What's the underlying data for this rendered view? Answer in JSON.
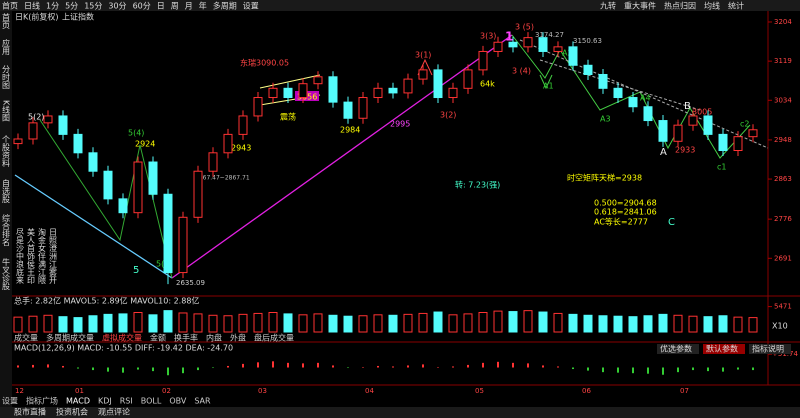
{
  "menu": {
    "left": [
      "首页",
      "日线",
      "1分",
      "5分",
      "15分",
      "30分",
      "60分",
      "日",
      "周",
      "月",
      "年",
      "多周期",
      "设置"
    ],
    "right": [
      "九转",
      "重大事件",
      "热点归因",
      "均线",
      "统计"
    ]
  },
  "sidebar": [
    "首页",
    "应用",
    "分时图",
    "K线图",
    "个股资料",
    "自选股",
    "综合排名",
    "牛叉诊股"
  ],
  "chart": {
    "type": "candlestick",
    "subtitle": "日K(前复权)",
    "name": "上证指数",
    "ylim": [
      2620,
      3230
    ],
    "yticks": [
      3204,
      3119,
      3034,
      2948,
      2863,
      2776,
      2691
    ],
    "dates": [
      "12",
      "01",
      "02",
      "03",
      "04",
      "05",
      "06",
      "07"
    ],
    "up_color": "#ff3232",
    "down_color": "#54fcfc",
    "open": [
      2940,
      2950,
      2985,
      3000,
      2960,
      2920,
      2880,
      2820,
      2790,
      2900,
      2830,
      2660,
      2780,
      2880,
      2920,
      2960,
      3000,
      3040,
      3060,
      3040,
      3070,
      3085,
      3030,
      2995,
      3040,
      3060,
      3050,
      3080,
      3100,
      3040,
      3060,
      3100,
      3140,
      3160,
      3150,
      3170,
      3140,
      3150,
      3110,
      3090,
      3060,
      3040,
      3020,
      2990,
      2945,
      2980,
      3000,
      2960,
      2925,
      2955
    ],
    "high": [
      2962,
      2997,
      3012,
      3012,
      2972,
      2932,
      2892,
      2832,
      2912,
      2912,
      2842,
      2792,
      2892,
      2932,
      2972,
      3012,
      3052,
      3072,
      3072,
      3082,
      3097,
      3097,
      3042,
      3052,
      3072,
      3072,
      3092,
      3112,
      3112,
      3072,
      3112,
      3152,
      3172,
      3172,
      3182,
      3182,
      3162,
      3162,
      3122,
      3102,
      3072,
      3052,
      3032,
      3002,
      2992,
      3012,
      3012,
      2972,
      2967,
      2982
    ],
    "low": [
      2928,
      2938,
      2973,
      2948,
      2908,
      2868,
      2808,
      2778,
      2778,
      2818,
      2635,
      2648,
      2768,
      2868,
      2908,
      2948,
      2988,
      3028,
      3028,
      3028,
      3058,
      3018,
      2983,
      2983,
      3028,
      3038,
      3038,
      3068,
      3028,
      3028,
      3048,
      3088,
      3128,
      3138,
      3138,
      3128,
      3128,
      3098,
      3078,
      3048,
      3028,
      3008,
      2978,
      2933,
      2933,
      2968,
      2948,
      2913,
      2913,
      2943
    ],
    "close": [
      2950,
      2985,
      3000,
      2960,
      2920,
      2880,
      2820,
      2790,
      2900,
      2830,
      2660,
      2780,
      2880,
      2920,
      2960,
      3000,
      3040,
      3060,
      3040,
      3070,
      3085,
      3030,
      2995,
      3040,
      3060,
      3050,
      3080,
      3100,
      3040,
      3060,
      3100,
      3140,
      3160,
      3150,
      3170,
      3140,
      3150,
      3110,
      3090,
      3060,
      3040,
      3020,
      2990,
      2945,
      2980,
      3000,
      2960,
      2925,
      2955,
      2970
    ],
    "annotations": [
      "5(2)",
      "5(4)",
      "2924",
      "5",
      "5(1)",
      "2635.09",
      "2943",
      "2867.47~2867.71",
      "东瑞3090.05",
      "3056",
      "震荡",
      "2984",
      "2995",
      "3(1)",
      "3(2)",
      "3(3)",
      "1",
      "3 (5)",
      "3 (4)",
      "3174.27",
      "3150.63",
      "64k",
      "A1",
      "A2",
      "A3",
      "A4",
      "B",
      "3005",
      "A",
      "2933",
      "c1",
      "c2",
      "C",
      "时空矩阵天梯=2938",
      "转: 7.23(强)",
      "0.500=2904.68",
      "0.618=2841.06",
      "AC等长=2777"
    ]
  },
  "poem": [
    "尽是沙中浪底来",
    "美人首饰侯王印",
    "淘金女伴满江隈",
    "日照澄洲江雾开"
  ],
  "volume": {
    "header": "总手: 2.82亿  MAVOL5: 2.89亿  MAVOL10: 2.88亿",
    "tabs": [
      "成交量",
      "多周期成交量",
      "虚拟成交量",
      "金额",
      "换手率",
      "内盘",
      "外盘",
      "盘后成交量"
    ],
    "ylim": [
      0,
      5600
    ],
    "yticks": [
      5471
    ],
    "unit": "X10",
    "values": [
      3200,
      3400,
      3600,
      3300,
      3100,
      3500,
      3800,
      3900,
      4200,
      3700,
      4600,
      4100,
      3900,
      3600,
      3500,
      3800,
      4000,
      4200,
      3900,
      3700,
      3900,
      3600,
      3400,
      3500,
      3700,
      3600,
      3800,
      4000,
      4300,
      3700,
      3900,
      4200,
      4500,
      4400,
      4600,
      4300,
      4000,
      3800,
      3600,
      3500,
      3400,
      3300,
      3500,
      3800,
      3600,
      3400,
      3300,
      3500,
      3200,
      3100
    ]
  },
  "macd": {
    "header": "MACD(12,26,9)  MACD: -10.55  DIFF: -19.42  DEA: -24.70",
    "buttons": [
      "优选参数",
      "默认参数",
      "指标说明"
    ],
    "ylim": [
      -60,
      60
    ],
    "yticks": [
      {
        "value": 51.74,
        "label": "+51.74"
      }
    ],
    "values": [
      8,
      10,
      12,
      6,
      -4,
      -10,
      -16,
      -20,
      -8,
      -14,
      -30,
      -22,
      -10,
      -2,
      6,
      14,
      20,
      24,
      18,
      16,
      18,
      8,
      -2,
      2,
      6,
      4,
      8,
      12,
      2,
      4,
      10,
      18,
      22,
      18,
      16,
      8,
      4,
      -6,
      -12,
      -18,
      -20,
      -22,
      -24,
      -28,
      -18,
      -10,
      -14,
      -16,
      -8,
      -10
    ]
  },
  "bottom_tabs": [
    "设置",
    "指标广场",
    "MACD",
    "KDJ",
    "RSI",
    "BOLL",
    "OBV",
    "SAR"
  ],
  "bottom_links": [
    "股市直播",
    "投资机会",
    "观点评论"
  ]
}
